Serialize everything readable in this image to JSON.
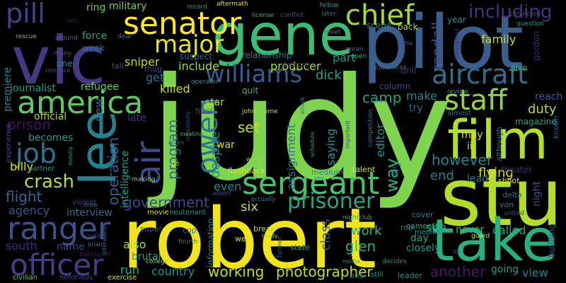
{
  "words": [
    {
      "text": "judy",
      "color": "#7ed34f"
    },
    {
      "text": "robert",
      "color": "#f0e51d"
    },
    {
      "text": "stu",
      "color": "#b3dc2b"
    },
    {
      "text": "pilot",
      "color": "#3b5e8d"
    },
    {
      "text": "vic",
      "color": "#443983"
    },
    {
      "text": "gene",
      "color": "#3cbb75"
    },
    {
      "text": "take",
      "color": "#2ab07f"
    },
    {
      "text": "film",
      "color": "#b5de2b"
    },
    {
      "text": "lee",
      "color": "#26818e"
    },
    {
      "text": "air",
      "color": "#3e4a89"
    },
    {
      "text": "sergeant",
      "color": "#4ac16d"
    },
    {
      "text": "senator",
      "color": "#fde725"
    },
    {
      "text": "america",
      "color": "#5ec962"
    },
    {
      "text": "officer",
      "color": "#433e85"
    },
    {
      "text": "ranger",
      "color": "#3b528b"
    },
    {
      "text": "williams",
      "color": "#365d8d"
    },
    {
      "text": "staff",
      "color": "#8fd744"
    },
    {
      "text": "chief",
      "color": "#a2da37"
    },
    {
      "text": "aircraft",
      "color": "#2c728e"
    },
    {
      "text": "major",
      "color": "#e5e419"
    },
    {
      "text": "owen",
      "color": "#2a788e"
    },
    {
      "text": "job",
      "color": "#2c728e"
    },
    {
      "text": "pill",
      "color": "#414487"
    },
    {
      "text": "prisoner",
      "color": "#22a884"
    },
    {
      "text": "crash",
      "color": "#b5de2b"
    },
    {
      "text": "including",
      "color": "#46327e"
    },
    {
      "text": "photographer",
      "color": "#bddf26"
    },
    {
      "text": "working",
      "color": "#c2df23"
    },
    {
      "text": "another",
      "color": "#48186a"
    },
    {
      "text": "operation",
      "color": "#355f8d"
    },
    {
      "text": "flight",
      "color": "#31688e"
    },
    {
      "text": "government",
      "color": "#3e4989"
    },
    {
      "text": "program",
      "color": "#32648e"
    },
    {
      "text": "however",
      "color": "#25858e"
    },
    {
      "text": "prison",
      "color": "#471063"
    },
    {
      "text": "sniper",
      "color": "#b8de29"
    },
    {
      "text": "include",
      "color": "#a5db36"
    },
    {
      "text": "producer",
      "color": "#addc30"
    },
    {
      "text": "randall",
      "color": "#3b528b"
    },
    {
      "text": "family",
      "color": "#c0df25"
    },
    {
      "text": "assignment",
      "color": "#2a788e"
    },
    {
      "text": "camp",
      "color": "#1fa088"
    },
    {
      "text": "glen",
      "color": "#2eb37c"
    },
    {
      "text": "way",
      "color": "#29af7f"
    },
    {
      "text": "work",
      "color": "#2db27d"
    },
    {
      "text": "called",
      "color": "#22a884"
    },
    {
      "text": "flying",
      "color": "#d2e21b"
    },
    {
      "text": "end",
      "color": "#26828e"
    },
    {
      "text": "set",
      "color": "#c8e020"
    },
    {
      "text": "six",
      "color": "#c2df23"
    },
    {
      "text": "part",
      "color": "#21918c"
    },
    {
      "text": "dick",
      "color": "#20a386"
    },
    {
      "text": "killed",
      "color": "#c5e021"
    },
    {
      "text": "get",
      "color": "#2d708e"
    },
    {
      "text": "billy",
      "color": "#dde318"
    },
    {
      "text": "duty",
      "color": "#b5de2b"
    },
    {
      "text": "make",
      "color": "#26828e"
    },
    {
      "text": "despite",
      "color": "#24878e"
    },
    {
      "text": "even",
      "color": "#23898e"
    },
    {
      "text": "saying",
      "color": "#20928c"
    },
    {
      "text": "editor",
      "color": "#21918c"
    },
    {
      "text": "class",
      "color": "#3b528b"
    },
    {
      "text": "intelligence",
      "color": "#1f9e89"
    },
    {
      "text": "becomes",
      "color": "#1f9a8a"
    },
    {
      "text": "journalist",
      "color": "#1f9e89"
    },
    {
      "text": "refugee",
      "color": "#6ccd5a"
    },
    {
      "text": "premiere",
      "color": "#25848e"
    },
    {
      "text": "agency",
      "color": "#39568c"
    },
    {
      "text": "new",
      "color": "#31688e"
    },
    {
      "text": "also",
      "color": "#a8db34"
    },
    {
      "text": "run",
      "color": "#29af7f"
    },
    {
      "text": "country",
      "color": "#21918c"
    },
    {
      "text": "south",
      "color": "#482878"
    },
    {
      "text": "name",
      "color": "#3f4788"
    },
    {
      "text": "interview",
      "color": "#2f6c8e"
    },
    {
      "text": "brutal",
      "color": "#1fa188"
    },
    {
      "text": "information",
      "color": "#23898e"
    },
    {
      "text": "view",
      "color": "#26828e"
    },
    {
      "text": "going",
      "color": "#1f9e89"
    },
    {
      "text": "closely",
      "color": "#1e9c89"
    },
    {
      "text": "day",
      "color": "#20a486"
    },
    {
      "text": "site",
      "color": "#2ab07f"
    },
    {
      "text": "never",
      "color": "#3aba76"
    },
    {
      "text": "lead",
      "color": "#2a788e"
    },
    {
      "text": "may",
      "color": "#dde318"
    },
    {
      "text": "ii",
      "color": "#bddf26"
    },
    {
      "text": "try",
      "color": "#30698e"
    },
    {
      "text": "reach",
      "color": "#365c8d"
    },
    {
      "text": "magazine",
      "color": "#22a884"
    },
    {
      "text": "theater",
      "color": "#482677"
    },
    {
      "text": "military",
      "color": "#7ad151"
    },
    {
      "text": "ring",
      "color": "#75d054"
    },
    {
      "text": "force",
      "color": "#20a386"
    },
    {
      "text": "week",
      "color": "#2a788e"
    },
    {
      "text": "one",
      "color": "#21918c"
    },
    {
      "text": "fall",
      "color": "#355f8d"
    },
    {
      "text": "thug",
      "color": "#3f4889"
    },
    {
      "text": "relationship",
      "color": "#277f8e"
    },
    {
      "text": "suspect",
      "color": "#33628d"
    },
    {
      "text": "quit",
      "color": "#35b779"
    },
    {
      "text": "star",
      "color": "#bddf26"
    },
    {
      "text": "war",
      "color": "#d8e219"
    },
    {
      "text": "late",
      "color": "#46307e"
    },
    {
      "text": "official",
      "color": "#addc30"
    },
    {
      "text": "scene",
      "color": "#26828e"
    },
    {
      "text": "back",
      "color": "#a0da39"
    },
    {
      "text": "column",
      "color": "#3e4989"
    },
    {
      "text": "drill",
      "color": "#46337f"
    },
    {
      "text": "give",
      "color": "#26ad81"
    },
    {
      "text": "almost",
      "color": "#306a8e"
    },
    {
      "text": "although",
      "color": "#2c738e"
    },
    {
      "text": "year",
      "color": "#20928c"
    },
    {
      "text": "gordon",
      "color": "#482475"
    },
    {
      "text": "building",
      "color": "#3b528b"
    },
    {
      "text": "known",
      "color": "#31688e"
    },
    {
      "text": "flashback",
      "color": "#d8e219"
    },
    {
      "text": "medium",
      "color": "#23898e"
    },
    {
      "text": "talent",
      "color": "#dde318"
    },
    {
      "text": "cover",
      "color": "#287c8e"
    },
    {
      "text": "shoot",
      "color": "#e2e418"
    },
    {
      "text": "delta",
      "color": "#2e6e8e"
    },
    {
      "text": "von",
      "color": "#2c738e"
    },
    {
      "text": "night",
      "color": "#3b528b"
    },
    {
      "text": "super",
      "color": "#3e4c8a"
    },
    {
      "text": "cop",
      "color": "#2d708e"
    },
    {
      "text": "movie",
      "color": "#d0e11c"
    },
    {
      "text": "lieutenant",
      "color": "#1f958b"
    },
    {
      "text": "well",
      "color": "#dde318"
    },
    {
      "text": "break",
      "color": "#c8e020"
    },
    {
      "text": "rob",
      "color": "#287c8e"
    },
    {
      "text": "camera",
      "color": "#25ab82"
    },
    {
      "text": "medical",
      "color": "#21918c"
    },
    {
      "text": "state",
      "color": "#1fa287"
    },
    {
      "text": "bos",
      "color": "#2a788e"
    },
    {
      "text": "leader",
      "color": "#21918c"
    },
    {
      "text": "still",
      "color": "#1e9b8a"
    },
    {
      "text": "college",
      "color": "#8bd646"
    },
    {
      "text": "fourth",
      "color": "#2a788e"
    },
    {
      "text": "exercise",
      "color": "#c2df23"
    },
    {
      "text": "civilian",
      "color": "#5cc863"
    },
    {
      "text": "notorious",
      "color": "#404688"
    },
    {
      "text": "experience",
      "color": "#3f4889"
    },
    {
      "text": "partner",
      "color": "#1f9e89"
    },
    {
      "text": "violent",
      "color": "#443a83"
    },
    {
      "text": "helicopter",
      "color": "#471365"
    },
    {
      "text": "making",
      "color": "#7ad151"
    },
    {
      "text": "wing",
      "color": "#93d741"
    },
    {
      "text": "john",
      "color": "#bddf26"
    },
    {
      "text": "come",
      "color": "#b5de2b"
    },
    {
      "text": "albert",
      "color": "#3e4a89"
    },
    {
      "text": "actually",
      "color": "#2d708e"
    },
    {
      "text": "decides",
      "color": "#21918c"
    },
    {
      "text": "former",
      "color": "#3a548c"
    },
    {
      "text": "nightclub",
      "color": "#22a884"
    },
    {
      "text": "guard",
      "color": "#dfe318"
    },
    {
      "text": "united",
      "color": "#3f4788"
    },
    {
      "text": "competition",
      "color": "#2e6f8e"
    },
    {
      "text": "rescue",
      "color": "#5ac864"
    },
    {
      "text": "around",
      "color": "#34618d"
    },
    {
      "text": "last",
      "color": "#460b5e"
    },
    {
      "text": "deal",
      "color": "#2e6e8e"
    },
    {
      "text": "aftermath",
      "color": "#dfe318"
    },
    {
      "text": "record",
      "color": "#1f9e89"
    },
    {
      "text": "license",
      "color": "#2db27d"
    },
    {
      "text": "conflict",
      "color": "#3f4788"
    },
    {
      "text": "fellow",
      "color": "#1f968b"
    },
    {
      "text": "later",
      "color": "#2a788e"
    },
    {
      "text": "meet",
      "color": "#26828e"
    },
    {
      "text": "mean",
      "color": "#31688e"
    },
    {
      "text": "convicted",
      "color": "#3f4788"
    },
    {
      "text": "question",
      "color": "#1f958b"
    },
    {
      "text": "title",
      "color": "#3b528b"
    },
    {
      "text": "open",
      "color": "#26ad81"
    },
    {
      "text": "betrayal",
      "color": "#46337f"
    },
    {
      "text": "convinces",
      "color": "#2d708e"
    },
    {
      "text": "review",
      "color": "#1f978b"
    },
    {
      "text": "many",
      "color": "#3b528b"
    },
    {
      "text": "romance",
      "color": "#37598c"
    },
    {
      "text": "operator",
      "color": "#21918c"
    },
    {
      "text": "final",
      "color": "#433e85"
    },
    {
      "text": "repeatedly",
      "color": "#414487"
    },
    {
      "text": "attack",
      "color": "#2a788e"
    },
    {
      "text": "important",
      "color": "#3b528b"
    },
    {
      "text": "schedule",
      "color": "#1f9e89"
    },
    {
      "text": "shot",
      "color": "#31688e"
    },
    {
      "text": "draw",
      "color": "#2d708e"
    },
    {
      "text": "mostly",
      "color": "#20a386"
    },
    {
      "text": "nation",
      "color": "#3f4788"
    },
    {
      "text": "ultimately",
      "color": "#31688e"
    },
    {
      "text": "brian",
      "color": "#2a788e"
    },
    {
      "text": "meeting",
      "color": "#2db27d"
    },
    {
      "text": "given",
      "color": "#31688e"
    },
    {
      "text": "ready",
      "color": "#a8db34"
    },
    {
      "text": "militia",
      "color": "#1f9e89"
    },
    {
      "text": "dy",
      "color": "#3b528b"
    },
    {
      "text": "throughout",
      "color": "#482475"
    },
    {
      "text": "go",
      "color": "#dde318"
    }
  ]
}
